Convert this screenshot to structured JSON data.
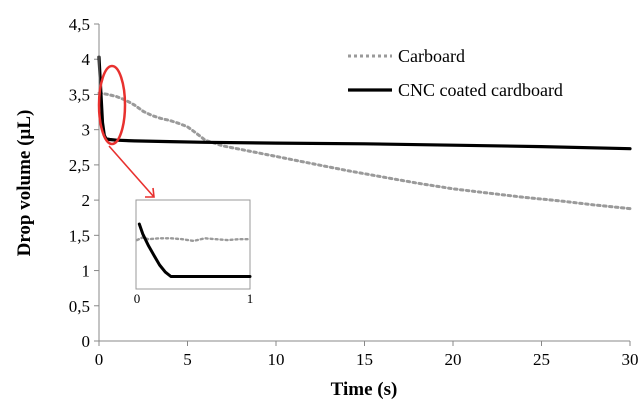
{
  "chart_data": {
    "type": "line",
    "xlabel": "Time (s)",
    "ylabel": "Drop volume (µL)",
    "xlim": [
      0,
      30
    ],
    "ylim": [
      0,
      4.5
    ],
    "x_ticks": [
      0,
      5,
      10,
      15,
      20,
      25,
      30
    ],
    "x_tick_labels": [
      "0",
      "5",
      "10",
      "15",
      "20",
      "25",
      "30"
    ],
    "y_ticks": [
      0,
      0.5,
      1,
      1.5,
      2,
      2.5,
      3,
      3.5,
      4,
      4.5
    ],
    "y_tick_labels": [
      "0",
      "0,5",
      "1",
      "1,5",
      "2",
      "2,5",
      "3",
      "3,5",
      "4",
      "4,5"
    ],
    "grid": false,
    "legend_position": "top-right",
    "series": [
      {
        "name": "Carboard",
        "style": "dotted",
        "color": "#9a9a9a",
        "x": [
          0,
          0.5,
          1,
          1.5,
          2,
          2.5,
          3,
          3.5,
          4,
          4.5,
          5,
          5.5,
          6,
          7,
          8,
          9,
          10,
          12,
          14,
          16,
          18,
          20,
          22,
          24,
          26,
          28,
          30
        ],
        "y": [
          3.52,
          3.5,
          3.47,
          3.42,
          3.35,
          3.26,
          3.2,
          3.16,
          3.13,
          3.09,
          3.04,
          2.95,
          2.85,
          2.77,
          2.72,
          2.67,
          2.62,
          2.52,
          2.42,
          2.33,
          2.24,
          2.16,
          2.1,
          2.04,
          1.99,
          1.93,
          1.88
        ]
      },
      {
        "name": "CNC coated cardboard",
        "style": "solid",
        "color": "#000000",
        "x": [
          0,
          0.1,
          0.2,
          0.3,
          0.4,
          0.6,
          1,
          2,
          4,
          6,
          10,
          15,
          20,
          25,
          30
        ],
        "y": [
          4.03,
          3.55,
          3.1,
          2.92,
          2.87,
          2.86,
          2.85,
          2.84,
          2.83,
          2.82,
          2.81,
          2.8,
          2.78,
          2.76,
          2.73
        ]
      }
    ],
    "annotations": [
      {
        "kind": "ellipse",
        "color": "#e8312f",
        "x_range": [
          0.1,
          1.2
        ],
        "y_range": [
          2.75,
          3.95
        ]
      },
      {
        "kind": "arrow",
        "color": "#e8312f"
      }
    ],
    "inset": {
      "xlim": [
        0,
        1
      ],
      "x_tick_labels": [
        "0",
        "1"
      ],
      "series": [
        {
          "name": "Carboard",
          "x": [
            0,
            0.05,
            0.1,
            0.2,
            0.3,
            0.4,
            0.5,
            0.6,
            0.7,
            0.8,
            0.9,
            1
          ],
          "y": [
            0.55,
            0.58,
            0.56,
            0.57,
            0.57,
            0.56,
            0.54,
            0.57,
            0.56,
            0.55,
            0.56,
            0.56
          ]
        },
        {
          "name": "CNC coated cardboard",
          "x": [
            0.02,
            0.05,
            0.1,
            0.15,
            0.2,
            0.25,
            0.3,
            0.4,
            0.5,
            0.6,
            0.8,
            1
          ],
          "y": [
            0.73,
            0.62,
            0.49,
            0.38,
            0.27,
            0.19,
            0.14,
            0.14,
            0.14,
            0.14,
            0.14,
            0.14
          ]
        }
      ]
    }
  }
}
